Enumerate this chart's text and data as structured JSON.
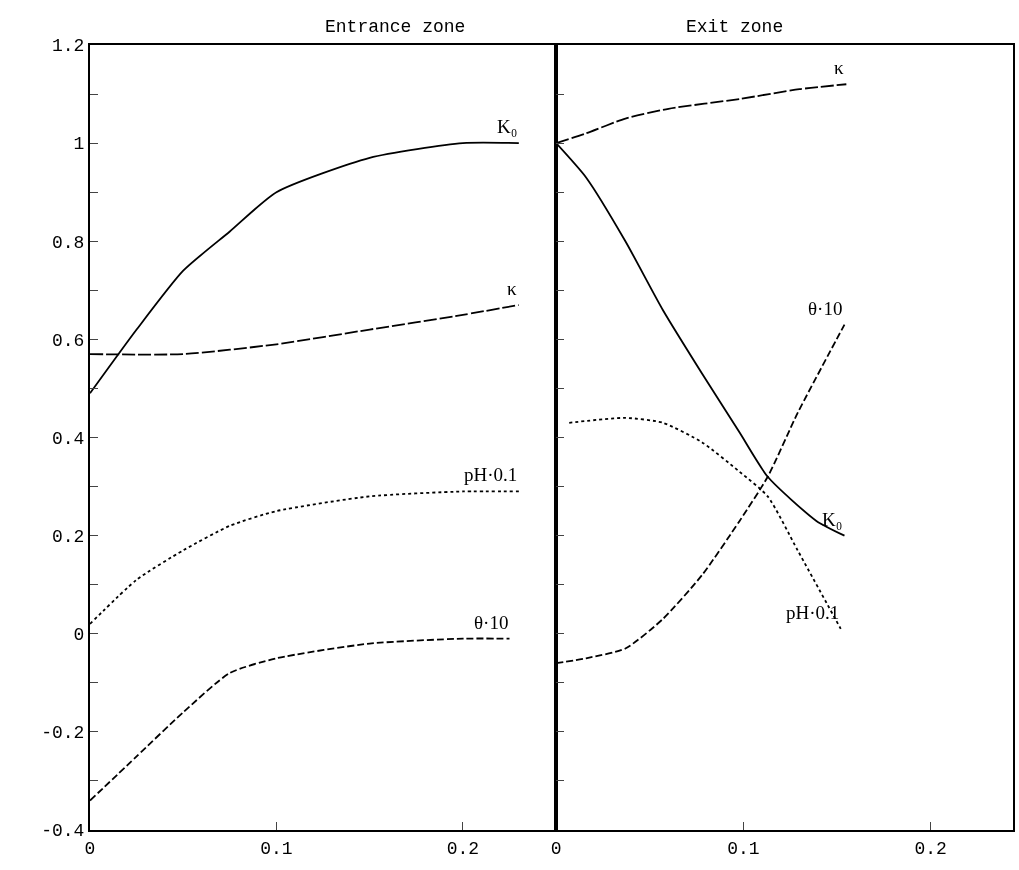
{
  "chart_data": [
    {
      "type": "line",
      "title": "Entrance zone",
      "legend": false,
      "xlim": [
        0,
        0.25
      ],
      "xticks": [
        0,
        0.1,
        0.2
      ],
      "ylim": [
        -0.4,
        1.2
      ],
      "yticks": [
        {
          "value": -0.4,
          "label": "-0.4"
        },
        {
          "value": -0.3,
          "label": null
        },
        {
          "value": -0.2,
          "label": "-0.2"
        },
        {
          "value": -0.1,
          "label": null
        },
        {
          "value": 0,
          "label": "0"
        },
        {
          "value": 0.1,
          "label": null
        },
        {
          "value": 0.2,
          "label": "0.2"
        },
        {
          "value": 0.3,
          "label": null
        },
        {
          "value": 0.4,
          "label": "0.4"
        },
        {
          "value": 0.5,
          "label": null
        },
        {
          "value": 0.6,
          "label": "0.6"
        },
        {
          "value": 0.7,
          "label": null
        },
        {
          "value": 0.8,
          "label": "0.8"
        },
        {
          "value": 0.9,
          "label": null
        },
        {
          "value": 1,
          "label": "1"
        },
        {
          "value": 1.1,
          "label": null
        },
        {
          "value": 1.2,
          "label": "1.2"
        }
      ],
      "series": [
        {
          "name": "K₀",
          "color": "#000000",
          "line_style": "solid",
          "x": [
            0,
            0.025,
            0.05,
            0.075,
            0.1,
            0.15,
            0.2,
            0.23
          ],
          "values": [
            0.49,
            0.62,
            0.74,
            0.82,
            0.9,
            0.97,
            1.0,
            1.0
          ]
        },
        {
          "name": "κ",
          "color": "#000000",
          "line_style": "longdash",
          "x": [
            0,
            0.05,
            0.1,
            0.15,
            0.2,
            0.23
          ],
          "values": [
            0.57,
            0.57,
            0.59,
            0.62,
            0.65,
            0.67
          ]
        },
        {
          "name": "pH·0.1",
          "color": "#000000",
          "line_style": "dotted",
          "x": [
            0,
            0.025,
            0.05,
            0.075,
            0.1,
            0.15,
            0.2,
            0.23
          ],
          "values": [
            0.02,
            0.11,
            0.17,
            0.22,
            0.25,
            0.28,
            0.29,
            0.29
          ]
        },
        {
          "name": "θ·10",
          "color": "#000000",
          "line_style": "dashed",
          "x": [
            0,
            0.025,
            0.05,
            0.075,
            0.1,
            0.15,
            0.2,
            0.225
          ],
          "values": [
            -0.34,
            -0.25,
            -0.16,
            -0.08,
            -0.05,
            -0.02,
            -0.01,
            -0.01
          ]
        }
      ]
    },
    {
      "type": "line",
      "title": "Exit zone",
      "legend": false,
      "tick_labels": "x",
      "xlim": [
        0,
        0.244
      ],
      "xticks": [
        0,
        0.1,
        0.2
      ],
      "ylim": [
        -0.4,
        1.2
      ],
      "yticks": [
        -0.4,
        {
          "value": -0.3,
          "label": null
        },
        -0.2,
        {
          "value": -0.1,
          "label": null
        },
        0,
        {
          "value": 0.1,
          "label": null
        },
        0.2,
        {
          "value": 0.3,
          "label": null
        },
        0.4,
        {
          "value": 0.5,
          "label": null
        },
        0.6,
        {
          "value": 0.7,
          "label": null
        },
        0.8,
        {
          "value": 0.9,
          "label": null
        },
        1,
        {
          "value": 1.1,
          "label": null
        },
        1.2
      ],
      "series": [
        {
          "name": "κ",
          "color": "#000000",
          "line_style": "longdash",
          "x": [
            0,
            0.016,
            0.037,
            0.06,
            0.098,
            0.13,
            0.155
          ],
          "values": [
            1.0,
            1.02,
            1.05,
            1.07,
            1.09,
            1.11,
            1.12
          ]
        },
        {
          "name": "θ·10",
          "color": "#000000",
          "line_style": "dashed",
          "x": [
            0,
            0.016,
            0.037,
            0.057,
            0.078,
            0.098,
            0.113,
            0.129,
            0.154
          ],
          "values": [
            -0.06,
            -0.05,
            -0.03,
            0.03,
            0.12,
            0.23,
            0.32,
            0.45,
            0.63
          ]
        },
        {
          "name": "K₀",
          "color": "#000000",
          "line_style": "solid",
          "x": [
            0,
            0.016,
            0.037,
            0.057,
            0.078,
            0.098,
            0.113,
            0.139,
            0.154
          ],
          "values": [
            1.0,
            0.93,
            0.8,
            0.66,
            0.53,
            0.41,
            0.32,
            0.23,
            0.2
          ]
        },
        {
          "name": "pH·0.1",
          "color": "#000000",
          "line_style": "dotted",
          "x": [
            0.007,
            0.037,
            0.057,
            0.078,
            0.098,
            0.113,
            0.129,
            0.152
          ],
          "values": [
            0.43,
            0.44,
            0.43,
            0.39,
            0.33,
            0.28,
            0.17,
            0.01
          ]
        }
      ]
    }
  ]
}
